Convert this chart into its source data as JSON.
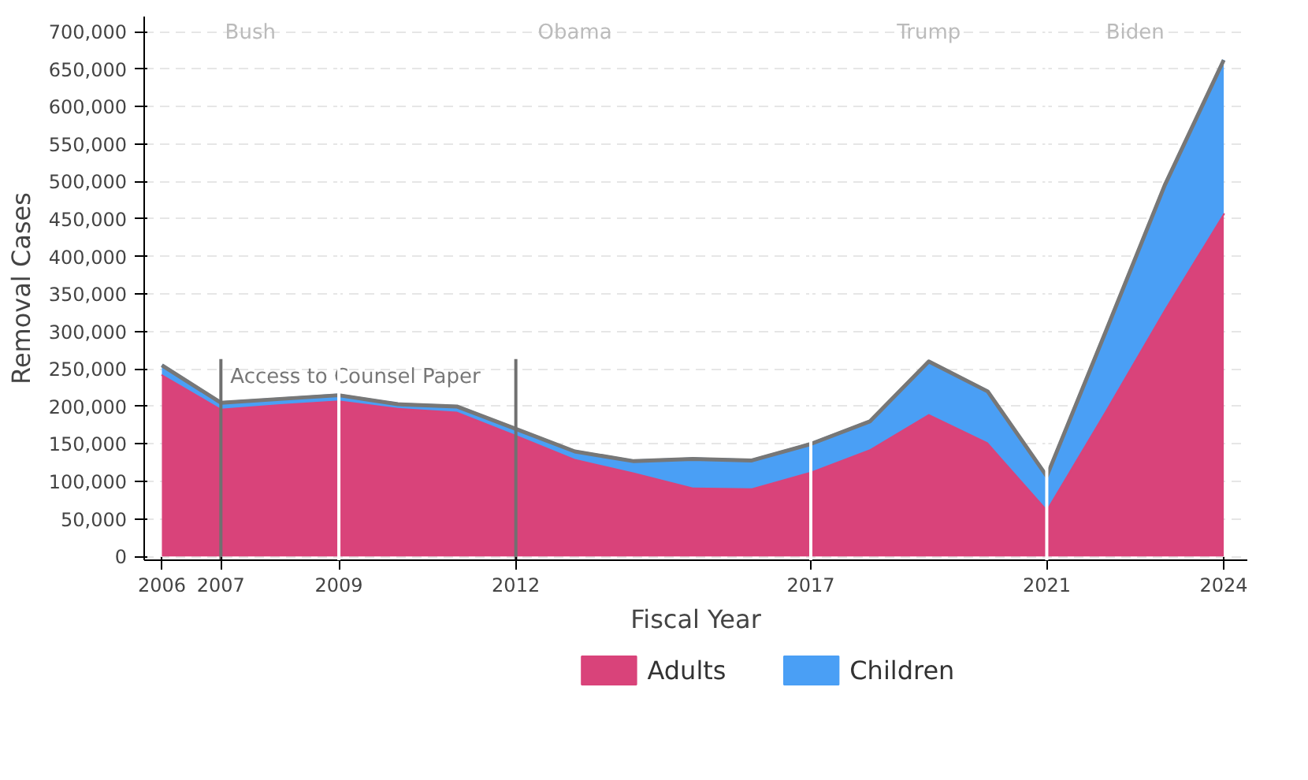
{
  "chart_data": {
    "type": "area",
    "stacked": true,
    "xlabel": "Fiscal Year",
    "ylabel": "Removal Cases",
    "x": [
      2006,
      2007,
      2008,
      2009,
      2010,
      2011,
      2012,
      2013,
      2014,
      2015,
      2016,
      2017,
      2018,
      2019,
      2020,
      2021,
      2022,
      2023,
      2024
    ],
    "series": [
      {
        "name": "Adults",
        "color": "#d9437a",
        "values": [
          243000,
          197000,
          203000,
          208000,
          198000,
          193000,
          162000,
          130000,
          112000,
          92000,
          91000,
          113000,
          143000,
          190000,
          152000,
          63000,
          195000,
          330000,
          458000
        ]
      },
      {
        "name": "Children",
        "color": "#4a9ff5",
        "values": [
          12000,
          8000,
          7000,
          7000,
          5000,
          7000,
          8000,
          10000,
          15000,
          38000,
          37000,
          37000,
          37000,
          70000,
          68000,
          44000,
          105000,
          165000,
          204000
        ]
      }
    ],
    "xlim": [
      2005.7,
      2024.4
    ],
    "ylim": [
      -5000,
      720000
    ],
    "xticks": [
      2006,
      2007,
      2009,
      2012,
      2017,
      2021,
      2024
    ],
    "yticks": [
      {
        "value": 0,
        "label": "0"
      },
      {
        "value": 50000,
        "label": "50,000"
      },
      {
        "value": 100000,
        "label": "100,000"
      },
      {
        "value": 150000,
        "label": "150,000"
      },
      {
        "value": 200000,
        "label": "200,000"
      },
      {
        "value": 250000,
        "label": "250,000"
      },
      {
        "value": 300000,
        "label": "300,000"
      },
      {
        "value": 350000,
        "label": "350,000"
      },
      {
        "value": 400000,
        "label": "400,000"
      },
      {
        "value": 450000,
        "label": "450,000"
      },
      {
        "value": 500000,
        "label": "500,000"
      },
      {
        "value": 550000,
        "label": "550,000"
      },
      {
        "value": 600000,
        "label": "600,000"
      },
      {
        "value": 650000,
        "label": "650,000"
      },
      {
        "value": 700000,
        "label": "700,000"
      }
    ],
    "grid": "y",
    "legend": "bottom",
    "ref_lines": [
      {
        "axis": "x",
        "value": 2007,
        "label": "Access to Counsel Paper",
        "color": "#707070"
      },
      {
        "axis": "x",
        "value": 2012,
        "label": null,
        "color": "#707070"
      },
      {
        "axis": "x",
        "value": 2009,
        "label": null,
        "color": "#ffffff"
      },
      {
        "axis": "x",
        "value": 2017,
        "label": null,
        "color": "#ffffff"
      },
      {
        "axis": "x",
        "value": 2021,
        "label": null,
        "color": "#ffffff"
      }
    ],
    "annotations": [
      "Bush",
      "Obama",
      "Trump",
      "Biden"
    ]
  }
}
